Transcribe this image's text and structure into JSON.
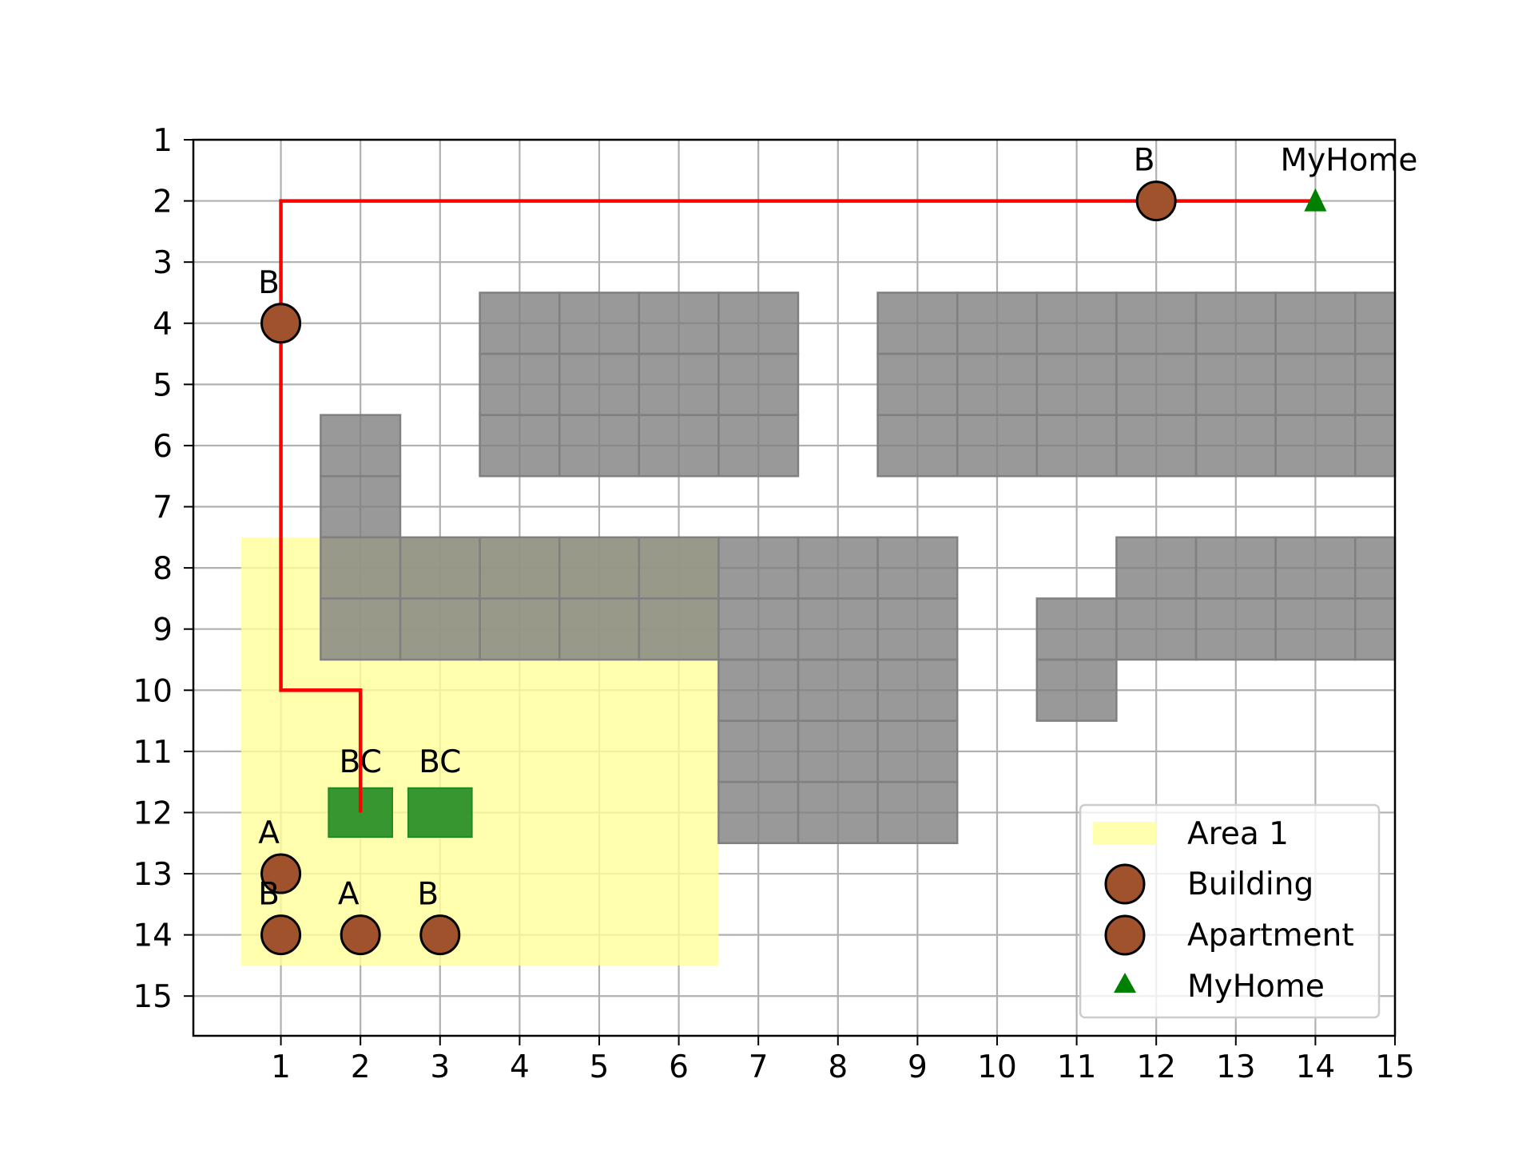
{
  "chart_data": {
    "type": "scatter",
    "title": "",
    "xlabel": "",
    "ylabel": "",
    "xlim": [
      -0.1,
      15
    ],
    "ylim": [
      15.65,
      1
    ],
    "y_inverted": true,
    "grid": true,
    "x_ticks": [
      1,
      2,
      3,
      4,
      5,
      6,
      7,
      8,
      9,
      10,
      11,
      12,
      13,
      14,
      15
    ],
    "y_ticks": [
      1,
      2,
      3,
      4,
      5,
      6,
      7,
      8,
      9,
      10,
      11,
      12,
      13,
      14,
      15
    ],
    "x_tick_labels": [
      "1",
      "2",
      "3",
      "4",
      "5",
      "6",
      "7",
      "8",
      "9",
      "10",
      "11",
      "12",
      "13",
      "14",
      "15"
    ],
    "y_tick_labels": [
      "1",
      "2",
      "3",
      "4",
      "5",
      "6",
      "7",
      "8",
      "9",
      "10",
      "11",
      "12",
      "13",
      "14",
      "15"
    ],
    "colors": {
      "obstacle": "#808080",
      "area": "#ffff99",
      "building": "#a0522d",
      "bc": "#228b22",
      "path": "#ff0000",
      "home": "#008000"
    },
    "obstacle_cells": [
      [
        4,
        4
      ],
      [
        5,
        4
      ],
      [
        6,
        4
      ],
      [
        7,
        4
      ],
      [
        4,
        5
      ],
      [
        5,
        5
      ],
      [
        6,
        5
      ],
      [
        7,
        5
      ],
      [
        4,
        6
      ],
      [
        5,
        6
      ],
      [
        6,
        6
      ],
      [
        7,
        6
      ],
      [
        9,
        4
      ],
      [
        10,
        4
      ],
      [
        11,
        4
      ],
      [
        12,
        4
      ],
      [
        13,
        4
      ],
      [
        14,
        4
      ],
      [
        15,
        4
      ],
      [
        9,
        5
      ],
      [
        10,
        5
      ],
      [
        11,
        5
      ],
      [
        12,
        5
      ],
      [
        13,
        5
      ],
      [
        14,
        5
      ],
      [
        15,
        5
      ],
      [
        9,
        6
      ],
      [
        10,
        6
      ],
      [
        11,
        6
      ],
      [
        12,
        6
      ],
      [
        13,
        6
      ],
      [
        14,
        6
      ],
      [
        15,
        6
      ],
      [
        2,
        6
      ],
      [
        2,
        7
      ],
      [
        2,
        8
      ],
      [
        3,
        8
      ],
      [
        4,
        8
      ],
      [
        5,
        8
      ],
      [
        6,
        8
      ],
      [
        7,
        8
      ],
      [
        8,
        8
      ],
      [
        9,
        8
      ],
      [
        2,
        9
      ],
      [
        3,
        9
      ],
      [
        4,
        9
      ],
      [
        5,
        9
      ],
      [
        6,
        9
      ],
      [
        7,
        9
      ],
      [
        8,
        9
      ],
      [
        9,
        9
      ],
      [
        7,
        10
      ],
      [
        8,
        10
      ],
      [
        9,
        10
      ],
      [
        7,
        11
      ],
      [
        8,
        11
      ],
      [
        9,
        11
      ],
      [
        7,
        12
      ],
      [
        8,
        12
      ],
      [
        9,
        12
      ],
      [
        12,
        8
      ],
      [
        13,
        8
      ],
      [
        14,
        8
      ],
      [
        15,
        8
      ],
      [
        11,
        9
      ],
      [
        12,
        9
      ],
      [
        13,
        9
      ],
      [
        14,
        9
      ],
      [
        15,
        9
      ],
      [
        11,
        10
      ]
    ],
    "areas": [
      {
        "name": "Area 1",
        "x_range": [
          0.5,
          6.5
        ],
        "y_range": [
          7.5,
          14.5
        ]
      }
    ],
    "bc_markers": [
      {
        "x": 2,
        "y": 12,
        "label": "BC"
      },
      {
        "x": 3,
        "y": 12,
        "label": "BC"
      }
    ],
    "path": {
      "points": [
        [
          14,
          2
        ],
        [
          1,
          2
        ],
        [
          1,
          10
        ],
        [
          2,
          10
        ],
        [
          2,
          12
        ]
      ]
    },
    "series": [
      {
        "name": "Building",
        "points": [
          {
            "x": 12,
            "y": 2,
            "label": "B"
          },
          {
            "x": 1,
            "y": 4,
            "label": "B"
          },
          {
            "x": 1,
            "y": 14,
            "label": "B"
          },
          {
            "x": 3,
            "y": 14,
            "label": "B"
          }
        ]
      },
      {
        "name": "Apartment",
        "points": [
          {
            "x": 1,
            "y": 13,
            "label": "A"
          },
          {
            "x": 2,
            "y": 14,
            "label": "A"
          }
        ]
      },
      {
        "name": "MyHome",
        "points": [
          {
            "x": 14,
            "y": 2,
            "label": "MyHome"
          }
        ]
      }
    ],
    "legend": {
      "position": "lower-right",
      "entries": [
        "Area 1",
        "Building",
        "Apartment",
        "MyHome"
      ]
    }
  }
}
